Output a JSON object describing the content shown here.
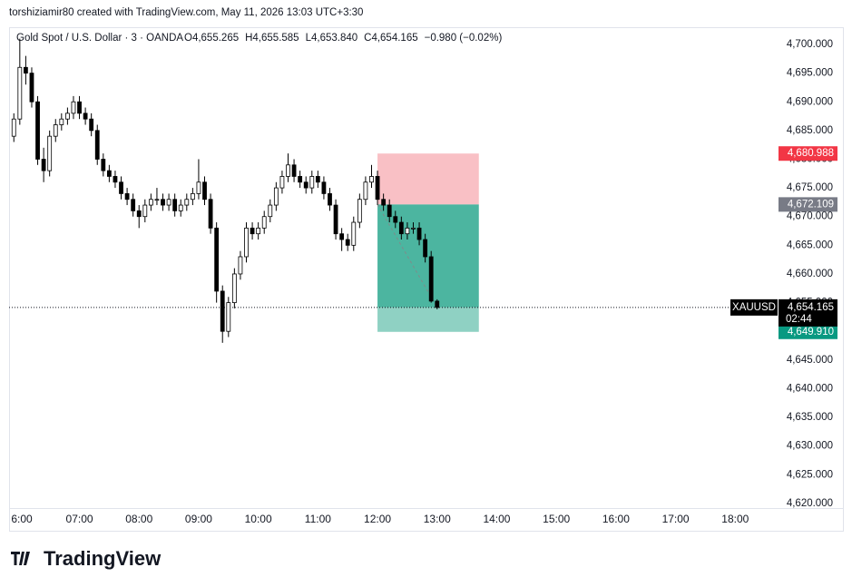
{
  "header": "torshiziamir80 created with TradingView.com, May 11, 2026 13:03 UTC+3:30",
  "brand": "TradingView",
  "chart_data": {
    "type": "candlestick",
    "title": "Gold Spot / U.S. Dollar · 3 · OANDA",
    "legend_ohlc": [
      "O4,655.265",
      "H4,655.585",
      "L4,653.840",
      "C4,654.165",
      "−0.980 (−0.02%)"
    ],
    "up_color": "#ffffff",
    "down_color": "#000000",
    "wick_color": "#000000",
    "grid": false,
    "xlim": [
      5.82,
      18.3
    ],
    "xticks": [
      {
        "value": 6,
        "label": "6:00"
      },
      {
        "value": 7,
        "label": "07:00"
      },
      {
        "value": 8,
        "label": "08:00"
      },
      {
        "value": 9,
        "label": "09:00"
      },
      {
        "value": 10,
        "label": "10:00"
      },
      {
        "value": 11,
        "label": "11:00"
      },
      {
        "value": 12,
        "label": "12:00"
      },
      {
        "value": 13,
        "label": "13:00"
      },
      {
        "value": 14,
        "label": "14:00"
      },
      {
        "value": 15,
        "label": "15:00"
      },
      {
        "value": 16,
        "label": "16:00"
      },
      {
        "value": 17,
        "label": "17:00"
      },
      {
        "value": 18,
        "label": "18:00"
      }
    ],
    "ylim": [
      4619.2,
      4703
    ],
    "yticks": [
      {
        "value": 4620,
        "label": "4,620.000"
      },
      {
        "value": 4625,
        "label": "4,625.000"
      },
      {
        "value": 4630,
        "label": "4,630.000"
      },
      {
        "value": 4635,
        "label": "4,635.000"
      },
      {
        "value": 4640,
        "label": "4,640.000"
      },
      {
        "value": 4645,
        "label": "4,645.000"
      },
      {
        "value": 4650,
        "label": "4,650.000"
      },
      {
        "value": 4655,
        "label": "4,655.000"
      },
      {
        "value": 4660,
        "label": "4,660.000"
      },
      {
        "value": 4665,
        "label": "4,665.000"
      },
      {
        "value": 4670,
        "label": "4,670.000"
      },
      {
        "value": 4675,
        "label": "4,675.000"
      },
      {
        "value": 4680,
        "label": "4,680.000"
      },
      {
        "value": 4685,
        "label": "4,685.000"
      },
      {
        "value": 4690,
        "label": "4,690.000"
      },
      {
        "value": 4695,
        "label": "4,695.000"
      },
      {
        "value": 4700,
        "label": "4,700.000"
      }
    ],
    "x": [
      5.9,
      6.0,
      6.1,
      6.2,
      6.3,
      6.4,
      6.5,
      6.6,
      6.7,
      6.8,
      6.9,
      7.0,
      7.1,
      7.2,
      7.3,
      7.4,
      7.5,
      7.6,
      7.7,
      7.8,
      7.9,
      8.0,
      8.1,
      8.2,
      8.3,
      8.4,
      8.5,
      8.6,
      8.7,
      8.8,
      8.9,
      9.0,
      9.1,
      9.2,
      9.3,
      9.4,
      9.5,
      9.6,
      9.7,
      9.8,
      9.9,
      10.0,
      10.1,
      10.2,
      10.3,
      10.4,
      10.5,
      10.6,
      10.7,
      10.8,
      10.9,
      11.0,
      11.1,
      11.2,
      11.3,
      11.4,
      11.5,
      11.6,
      11.7,
      11.8,
      11.9,
      12.0,
      12.1,
      12.2,
      12.3,
      12.4,
      12.5,
      12.6,
      12.7,
      12.8,
      12.9,
      13.0
    ],
    "ohlc": [
      [
        4684,
        4688,
        4683,
        4687
      ],
      [
        4687,
        4701,
        4686,
        4696
      ],
      [
        4696,
        4698,
        4693,
        4695
      ],
      [
        4695,
        4696,
        4689,
        4690
      ],
      [
        4690,
        4691,
        4679,
        4680
      ],
      [
        4680,
        4682,
        4676,
        4678
      ],
      [
        4678,
        4685,
        4677,
        4684
      ],
      [
        4684,
        4687,
        4683,
        4686
      ],
      [
        4686,
        4688,
        4685,
        4687
      ],
      [
        4687,
        4689,
        4686,
        4688
      ],
      [
        4688,
        4691,
        4687,
        4690
      ],
      [
        4690,
        4691,
        4687,
        4688
      ],
      [
        4688,
        4689,
        4686,
        4687
      ],
      [
        4687,
        4688,
        4684,
        4685
      ],
      [
        4685,
        4686,
        4679,
        4680
      ],
      [
        4680,
        4681,
        4677,
        4678
      ],
      [
        4678,
        4679,
        4676,
        4677
      ],
      [
        4677,
        4678,
        4675,
        4676
      ],
      [
        4676,
        4677,
        4673,
        4674
      ],
      [
        4674,
        4675,
        4672,
        4673
      ],
      [
        4673,
        4674,
        4670,
        4671
      ],
      [
        4671,
        4672,
        4668,
        4670
      ],
      [
        4670,
        4673,
        4669,
        4672
      ],
      [
        4672,
        4674,
        4671,
        4673
      ],
      [
        4673,
        4675,
        4672,
        4673
      ],
      [
        4673,
        4674,
        4671,
        4672
      ],
      [
        4672,
        4674,
        4671,
        4673
      ],
      [
        4673,
        4674,
        4670,
        4671
      ],
      [
        4671,
        4673,
        4670,
        4672
      ],
      [
        4672,
        4674,
        4671,
        4673
      ],
      [
        4673,
        4675,
        4672,
        4674
      ],
      [
        4674,
        4680,
        4673,
        4676
      ],
      [
        4676,
        4677,
        4672,
        4673
      ],
      [
        4673,
        4674,
        4667,
        4668
      ],
      [
        4668,
        4669,
        4655,
        4657
      ],
      [
        4657,
        4658,
        4648,
        4650
      ],
      [
        4650,
        4656,
        4649,
        4655
      ],
      [
        4655,
        4661,
        4654,
        4660
      ],
      [
        4660,
        4664,
        4659,
        4663
      ],
      [
        4663,
        4669,
        4662,
        4668
      ],
      [
        4668,
        4669,
        4666,
        4667
      ],
      [
        4667,
        4669,
        4666,
        4668
      ],
      [
        4668,
        4671,
        4667,
        4670
      ],
      [
        4670,
        4673,
        4669,
        4672
      ],
      [
        4672,
        4676,
        4671,
        4675
      ],
      [
        4675,
        4678,
        4674,
        4677
      ],
      [
        4677,
        4681,
        4676,
        4679
      ],
      [
        4679,
        4680,
        4676,
        4677
      ],
      [
        4677,
        4678,
        4675,
        4676
      ],
      [
        4676,
        4677,
        4674,
        4675
      ],
      [
        4675,
        4678,
        4674,
        4677
      ],
      [
        4677,
        4678,
        4675,
        4676
      ],
      [
        4676,
        4677,
        4673,
        4674
      ],
      [
        4674,
        4675,
        4671,
        4672
      ],
      [
        4672,
        4673,
        4666,
        4667
      ],
      [
        4667,
        4668,
        4664,
        4666
      ],
      [
        4666,
        4667,
        4664,
        4665
      ],
      [
        4665,
        4670,
        4664,
        4669
      ],
      [
        4669,
        4674,
        4668,
        4673
      ],
      [
        4673,
        4677,
        4672,
        4676
      ],
      [
        4676,
        4679,
        4675,
        4677
      ],
      [
        4677,
        4678,
        4672,
        4673
      ],
      [
        4673,
        4674,
        4671,
        4672
      ],
      [
        4672,
        4673,
        4669,
        4670
      ],
      [
        4670,
        4671,
        4668,
        4669
      ],
      [
        4669,
        4670,
        4666,
        4667
      ],
      [
        4667,
        4669,
        4666,
        4668
      ],
      [
        4668,
        4669,
        4667,
        4668
      ],
      [
        4668,
        4669,
        4665,
        4666
      ],
      [
        4666,
        4667,
        4662,
        4663
      ],
      [
        4663,
        4664,
        4655,
        4655.265
      ],
      [
        4655.265,
        4655.585,
        4653.84,
        4654.165
      ]
    ],
    "position": {
      "x": [
        12.0,
        13.7
      ],
      "stop": {
        "value": 4680.988,
        "label": "4,680.988",
        "color": "#f23645"
      },
      "entry": {
        "value": 4672.109,
        "label": "4,672.109",
        "color": "#787b86"
      },
      "target": {
        "value": 4649.91,
        "label": "4,649.910",
        "color": "#089981"
      },
      "risk_fill": "#f9c0c5",
      "reward_fill": "#4cb5a0",
      "reward_rest_fill": "#8fd1c3"
    },
    "last_price": {
      "value": 4654.165,
      "label": "4,654.165",
      "symbol": "XAUUSD",
      "countdown": "02:44"
    }
  }
}
